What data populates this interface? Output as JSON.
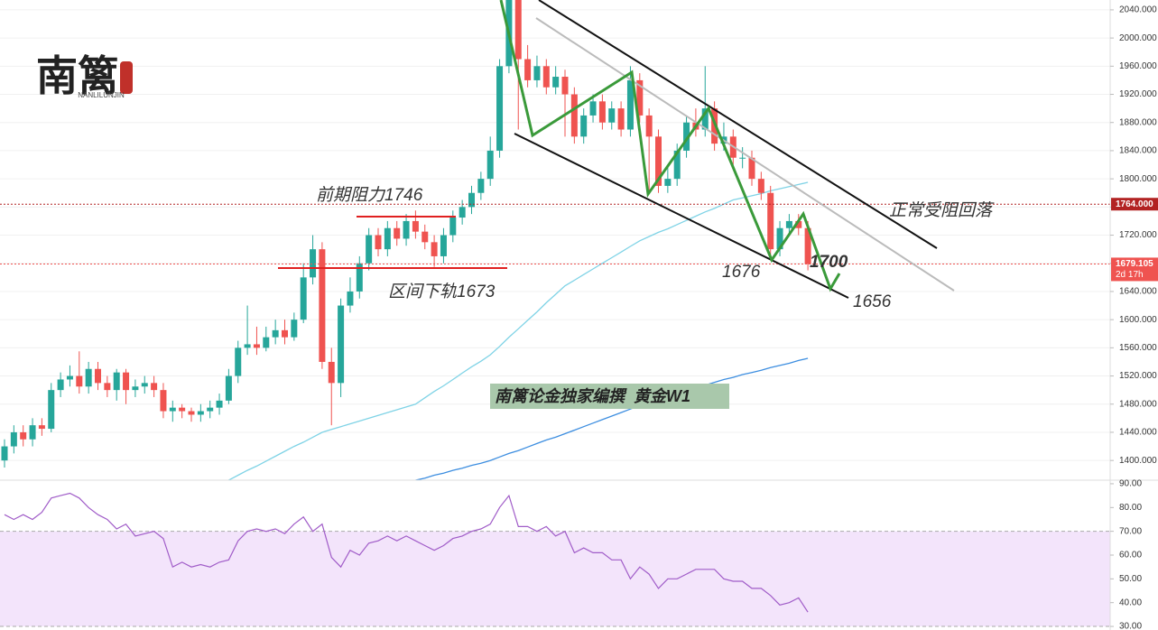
{
  "logo": {
    "name": "南篱",
    "subtitle": "NANLILUNJIN"
  },
  "chart_data": [
    {
      "type": "candlestick",
      "annotations": [
        "前期阻力1746",
        "区间下轨1673",
        "正常受阻回落",
        "1676",
        "1700",
        "1656",
        "南篱论金独家编撰  黄金W1"
      ],
      "up_color": "#26a69a",
      "down_color": "#ef5350",
      "open": [
        1400,
        1420,
        1440,
        1430,
        1450,
        1445,
        1500,
        1515,
        1520,
        1505,
        1530,
        1510,
        1500,
        1525,
        1500,
        1505,
        1510,
        1500,
        1470,
        1475,
        1470,
        1465,
        1470,
        1475,
        1485,
        1520,
        1560,
        1565,
        1560,
        1575,
        1585,
        1575,
        1600,
        1660,
        1700,
        1540,
        1510,
        1620,
        1640,
        1680,
        1720,
        1700,
        1730,
        1715,
        1740,
        1725,
        1710,
        1690,
        1720,
        1745,
        1760,
        1780,
        1800,
        1840,
        1960,
        2060,
        1970,
        1940,
        1960,
        1930,
        1945,
        1920,
        1860,
        1890,
        1910,
        1880,
        1900,
        1870,
        1940,
        1890,
        1860,
        1790,
        1800,
        1840,
        1880,
        1870,
        1900,
        1850,
        1860,
        1830,
        1830,
        1800,
        1780,
        1700,
        1730,
        1740,
        1730
      ],
      "high": [
        1430,
        1450,
        1450,
        1460,
        1460,
        1510,
        1525,
        1535,
        1555,
        1540,
        1540,
        1520,
        1530,
        1530,
        1515,
        1520,
        1520,
        1510,
        1485,
        1480,
        1475,
        1480,
        1485,
        1495,
        1530,
        1570,
        1620,
        1590,
        1590,
        1600,
        1600,
        1610,
        1680,
        1720,
        1710,
        1560,
        1630,
        1660,
        1690,
        1730,
        1730,
        1740,
        1740,
        1750,
        1755,
        1735,
        1720,
        1730,
        1755,
        1770,
        1790,
        1810,
        1860,
        1970,
        2075,
        2070,
        1990,
        1975,
        1970,
        1960,
        1955,
        1930,
        1900,
        1920,
        1920,
        1910,
        1910,
        1960,
        1950,
        1900,
        1870,
        1820,
        1850,
        1890,
        1900,
        1960,
        1910,
        1880,
        1870,
        1845,
        1840,
        1810,
        1790,
        1740,
        1750,
        1750,
        1740
      ],
      "low": [
        1390,
        1410,
        1420,
        1420,
        1435,
        1440,
        1490,
        1505,
        1495,
        1495,
        1500,
        1490,
        1485,
        1480,
        1490,
        1495,
        1490,
        1460,
        1455,
        1460,
        1455,
        1455,
        1460,
        1465,
        1480,
        1510,
        1550,
        1550,
        1555,
        1565,
        1565,
        1570,
        1595,
        1650,
        1530,
        1450,
        1490,
        1610,
        1630,
        1670,
        1690,
        1690,
        1705,
        1705,
        1715,
        1700,
        1675,
        1680,
        1710,
        1735,
        1750,
        1770,
        1790,
        1830,
        1950,
        1870,
        1930,
        1930,
        1920,
        1920,
        1860,
        1850,
        1850,
        1880,
        1870,
        1870,
        1860,
        1860,
        1880,
        1780,
        1780,
        1780,
        1790,
        1830,
        1860,
        1860,
        1840,
        1840,
        1820,
        1815,
        1790,
        1770,
        1690,
        1690,
        1720,
        1720,
        1670
      ],
      "close": [
        1420,
        1440,
        1430,
        1450,
        1445,
        1500,
        1515,
        1520,
        1505,
        1530,
        1510,
        1500,
        1525,
        1500,
        1505,
        1510,
        1500,
        1470,
        1475,
        1470,
        1465,
        1470,
        1475,
        1485,
        1520,
        1560,
        1565,
        1560,
        1575,
        1585,
        1575,
        1600,
        1660,
        1700,
        1540,
        1510,
        1620,
        1640,
        1680,
        1720,
        1700,
        1730,
        1715,
        1740,
        1725,
        1710,
        1690,
        1720,
        1745,
        1760,
        1780,
        1800,
        1840,
        1960,
        2060,
        1970,
        1940,
        1960,
        1930,
        1945,
        1920,
        1860,
        1890,
        1910,
        1880,
        1900,
        1870,
        1940,
        1890,
        1860,
        1790,
        1800,
        1840,
        1880,
        1870,
        1900,
        1850,
        1860,
        1830,
        1830,
        1800,
        1780,
        1700,
        1730,
        1740,
        1730,
        1679
      ],
      "series": [
        {
          "color": "#7fd3e6",
          "values": [
            null,
            null,
            null,
            null,
            null,
            null,
            null,
            null,
            null,
            null,
            null,
            null,
            null,
            null,
            null,
            null,
            null,
            null,
            null,
            null,
            null,
            null,
            null,
            null,
            1372,
            1379,
            1386,
            1392,
            1399,
            1406,
            1413,
            1420,
            1426,
            1433,
            1440,
            1444,
            1448,
            1452,
            1456,
            1460,
            1464,
            1468,
            1472,
            1476,
            1480,
            1489,
            1498,
            1506,
            1515,
            1524,
            1533,
            1541,
            1550,
            1562,
            1575,
            1587,
            1599,
            1611,
            1624,
            1636,
            1648,
            1656,
            1664,
            1672,
            1680,
            1688,
            1696,
            1704,
            1712,
            1718,
            1724,
            1729,
            1735,
            1741,
            1747,
            1753,
            1758,
            1764,
            1770,
            1773,
            1776,
            1779,
            1783,
            1786,
            1789,
            1792,
            1795
          ]
        },
        {
          "color": "#3d8ee0",
          "values": [
            null,
            null,
            null,
            null,
            null,
            null,
            null,
            null,
            null,
            null,
            null,
            null,
            null,
            null,
            null,
            null,
            null,
            null,
            null,
            null,
            null,
            null,
            null,
            null,
            null,
            null,
            null,
            null,
            null,
            null,
            null,
            null,
            null,
            null,
            null,
            null,
            null,
            null,
            null,
            null,
            null,
            null,
            null,
            null,
            1372,
            1375,
            1379,
            1382,
            1386,
            1389,
            1393,
            1396,
            1400,
            1405,
            1410,
            1414,
            1419,
            1424,
            1429,
            1433,
            1438,
            1443,
            1448,
            1453,
            1458,
            1463,
            1468,
            1473,
            1478,
            1483,
            1487,
            1491,
            1495,
            1499,
            1503,
            1507,
            1511,
            1515,
            1518,
            1522,
            1525,
            1528,
            1532,
            1535,
            1538,
            1542,
            1545
          ]
        }
      ],
      "ylim": [
        1372,
        2054
      ],
      "yticks": [
        {
          "value": 1400,
          "label": "1400.000"
        },
        {
          "value": 1440,
          "label": "1440.000"
        },
        {
          "value": 1480,
          "label": "1480.000"
        },
        {
          "value": 1520,
          "label": "1520.000"
        },
        {
          "value": 1560,
          "label": "1560.000"
        },
        {
          "value": 1600,
          "label": "1600.000"
        },
        {
          "value": 1640,
          "label": "1640.000"
        },
        {
          "value": 1680,
          "label": "1680.000"
        },
        {
          "value": 1720,
          "label": "1720.000"
        },
        {
          "value": 1760,
          "label": "1760.000"
        },
        {
          "value": 1800,
          "label": "1800.000"
        },
        {
          "value": 1840,
          "label": "1840.000"
        },
        {
          "value": 1880,
          "label": "1880.000"
        },
        {
          "value": 1920,
          "label": "1920.000"
        },
        {
          "value": 1960,
          "label": "1960.000"
        },
        {
          "value": 2000,
          "label": "2000.000"
        },
        {
          "value": 2040,
          "label": "2040.000"
        }
      ],
      "price_markers": [
        {
          "value": 1764,
          "label": "1764.000",
          "color": "#b22222"
        },
        {
          "value": 1679.105,
          "label": "1679.105",
          "color": "#ef5350",
          "countdown": "2d 17h"
        }
      ],
      "grid": true
    },
    {
      "type": "line",
      "color": "#a05cc8",
      "band_color": "#f3e4fb",
      "values": [
        77,
        75,
        77,
        75,
        78,
        84,
        85,
        86,
        84,
        80,
        77,
        75,
        71,
        73,
        68,
        69,
        70,
        67,
        55,
        57,
        55,
        56,
        55,
        57,
        58,
        66,
        70,
        71,
        70,
        71,
        69,
        73,
        76,
        70,
        73,
        59,
        55,
        62,
        60,
        65,
        66,
        68,
        66,
        68,
        66,
        64,
        62,
        64,
        67,
        68,
        70,
        71,
        73,
        80,
        85,
        72,
        72,
        70,
        72,
        68,
        70,
        61,
        63,
        61,
        61,
        58,
        58,
        50,
        55,
        52,
        46,
        50,
        50,
        52,
        54,
        54,
        54,
        50,
        49,
        49,
        46,
        46,
        43,
        39,
        40,
        42,
        36
      ],
      "ylim": [
        28.5,
        91.5
      ],
      "band": [
        30,
        70
      ],
      "yticks": [
        {
          "value": 30,
          "label": "30.00"
        },
        {
          "value": 40,
          "label": "40.00"
        },
        {
          "value": 50,
          "label": "50.00"
        },
        {
          "value": 60,
          "label": "60.00"
        },
        {
          "value": 70,
          "label": "70.00"
        },
        {
          "value": 80,
          "label": "80.00"
        },
        {
          "value": 90,
          "label": "90.00"
        }
      ]
    }
  ]
}
